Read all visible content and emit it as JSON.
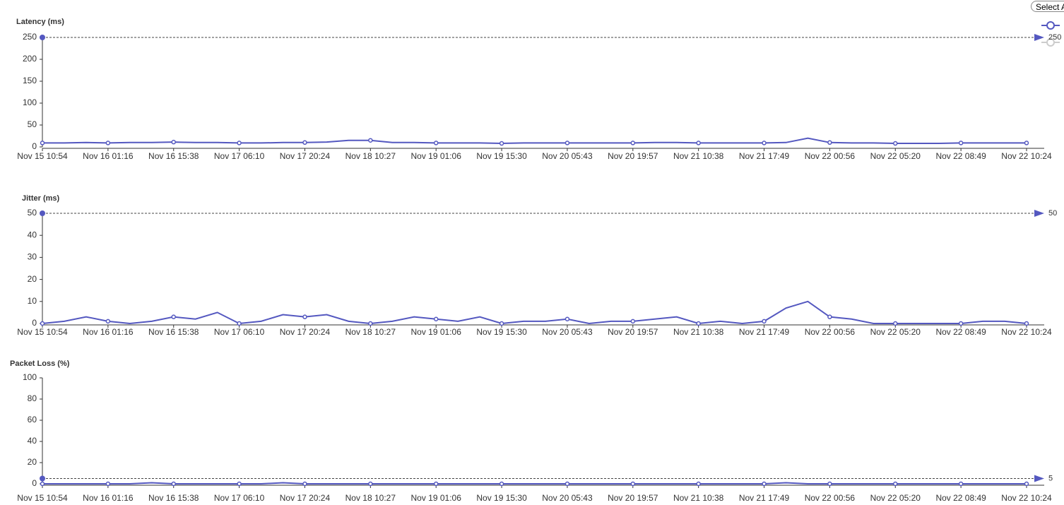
{
  "select_button": "Select All",
  "chart_data": [
    {
      "type": "line",
      "title": "Latency (ms)",
      "categories": [
        "Nov 15 10:54",
        null,
        null,
        "Nov 16 01:16",
        null,
        null,
        "Nov 16 15:38",
        null,
        null,
        "Nov 17 06:10",
        null,
        null,
        "Nov 17 20:24",
        null,
        null,
        "Nov 18 10:27",
        null,
        null,
        "Nov 19 01:06",
        null,
        null,
        "Nov 19 15:30",
        null,
        null,
        "Nov 20 05:43",
        null,
        null,
        "Nov 20 19:57",
        null,
        null,
        "Nov 21 10:38",
        null,
        null,
        "Nov 21 17:49",
        null,
        null,
        "Nov 22 00:56",
        null,
        null,
        "Nov 22 05:20",
        null,
        null,
        "Nov 22 08:49",
        null,
        null,
        "Nov 22 10:24"
      ],
      "series": [
        {
          "color": "#5458c0",
          "values": [
            9,
            9,
            10,
            9,
            10,
            10,
            11,
            10,
            10,
            9,
            9,
            10,
            10,
            11,
            15,
            15,
            10,
            10,
            9,
            9,
            9,
            8,
            9,
            9,
            9,
            9,
            9,
            9,
            10,
            10,
            9,
            9,
            9,
            9,
            10,
            20,
            10,
            9,
            9,
            8,
            8,
            8,
            9,
            9,
            9,
            9
          ]
        }
      ],
      "ylim": [
        0,
        250
      ],
      "yticks": [
        0,
        50,
        100,
        150,
        200,
        250
      ],
      "threshold": 250
    },
    {
      "type": "line",
      "title": "Jitter (ms)",
      "categories": [
        "Nov 15 10:54",
        null,
        null,
        "Nov 16 01:16",
        null,
        null,
        "Nov 16 15:38",
        null,
        null,
        "Nov 17 06:10",
        null,
        null,
        "Nov 17 20:24",
        null,
        null,
        "Nov 18 10:27",
        null,
        null,
        "Nov 19 01:06",
        null,
        null,
        "Nov 19 15:30",
        null,
        null,
        "Nov 20 05:43",
        null,
        null,
        "Nov 20 19:57",
        null,
        null,
        "Nov 21 10:38",
        null,
        null,
        "Nov 21 17:49",
        null,
        null,
        "Nov 22 00:56",
        null,
        null,
        "Nov 22 05:20",
        null,
        null,
        "Nov 22 08:49",
        null,
        null,
        "Nov 22 10:24"
      ],
      "series": [
        {
          "color": "#5458c0",
          "values": [
            0,
            1,
            3,
            1,
            0,
            1,
            3,
            2,
            5,
            0,
            1,
            4,
            3,
            4,
            1,
            0,
            1,
            3,
            2,
            1,
            3,
            0,
            1,
            1,
            2,
            0,
            1,
            1,
            2,
            3,
            0,
            1,
            0,
            1,
            7,
            10,
            3,
            2,
            0,
            0,
            0,
            0,
            0,
            1,
            1,
            0
          ]
        }
      ],
      "ylim": [
        0,
        50
      ],
      "yticks": [
        0,
        10,
        20,
        30,
        40,
        50
      ],
      "threshold": 50
    },
    {
      "type": "line",
      "title": "Packet Loss (%)",
      "categories": [
        "Nov 15 10:54",
        null,
        null,
        "Nov 16 01:16",
        null,
        null,
        "Nov 16 15:38",
        null,
        null,
        "Nov 17 06:10",
        null,
        null,
        "Nov 17 20:24",
        null,
        null,
        "Nov 18 10:27",
        null,
        null,
        "Nov 19 01:06",
        null,
        null,
        "Nov 19 15:30",
        null,
        null,
        "Nov 20 05:43",
        null,
        null,
        "Nov 20 19:57",
        null,
        null,
        "Nov 21 10:38",
        null,
        null,
        "Nov 21 17:49",
        null,
        null,
        "Nov 22 00:56",
        null,
        null,
        "Nov 22 05:20",
        null,
        null,
        "Nov 22 08:49",
        null,
        null,
        "Nov 22 10:24"
      ],
      "series": [
        {
          "color": "#5458c0",
          "values": [
            0,
            0,
            0,
            0,
            0,
            1,
            0,
            0,
            0,
            0,
            0,
            1,
            0,
            0,
            0,
            0,
            0,
            0,
            0,
            0,
            0,
            0,
            0,
            0,
            0,
            0,
            0,
            0,
            0,
            0,
            0,
            0,
            0,
            0,
            1,
            0,
            0,
            0,
            0,
            0,
            0,
            0,
            0,
            0,
            0,
            0
          ]
        }
      ],
      "ylim": [
        0,
        100
      ],
      "yticks": [
        0,
        20,
        40,
        60,
        80,
        100
      ],
      "threshold": 5
    }
  ]
}
